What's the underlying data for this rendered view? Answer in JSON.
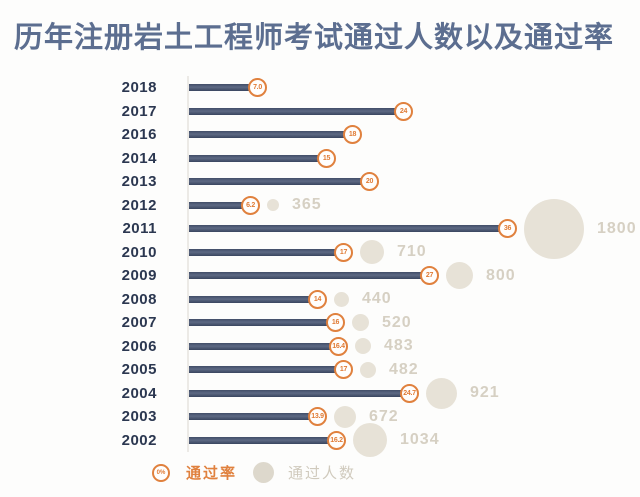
{
  "title": "历年注册岩土工程师考试通过人数以及通过率",
  "colors": {
    "title_text": "#5c6e90",
    "year_text": "#2b3750",
    "bar": "#4b5772",
    "accent_orange": "#e0813e",
    "bubble_fill": "#e7e2d7",
    "count_text": "#d6d0c3",
    "axis_line": "#eceae6"
  },
  "legend": {
    "rate_symbol": "0%",
    "rate_label": "通过率",
    "count_label": "通过人数"
  },
  "chart_data": {
    "type": "bar",
    "orientation": "horizontal",
    "title": "历年注册岩土工程师考试通过人数以及通过率",
    "xlabel": "",
    "ylabel": "",
    "xlim": [
      0,
      40
    ],
    "grid": false,
    "legend_position": "bottom",
    "categories": [
      "2018",
      "2017",
      "2016",
      "2014",
      "2013",
      "2012",
      "2011",
      "2010",
      "2009",
      "2008",
      "2007",
      "2006",
      "2005",
      "2004",
      "2003",
      "2002"
    ],
    "series": [
      {
        "name": "通过率",
        "unit": "%",
        "values": [
          7.0,
          24,
          18,
          15,
          20,
          6.2,
          36,
          17,
          27,
          14,
          16,
          16.4,
          17,
          24.7,
          13.9,
          16.2
        ]
      },
      {
        "name": "通过人数",
        "unit": "人",
        "values": [
          null,
          null,
          null,
          null,
          null,
          365,
          1800,
          710,
          800,
          440,
          520,
          483,
          482,
          921,
          672,
          1034
        ]
      }
    ],
    "rows": [
      {
        "year": "2018",
        "rate": 7.0,
        "rate_label": "7.0",
        "count": null
      },
      {
        "year": "2017",
        "rate": 24,
        "rate_label": "24",
        "count": null
      },
      {
        "year": "2016",
        "rate": 18,
        "rate_label": "18",
        "count": null
      },
      {
        "year": "2014",
        "rate": 15,
        "rate_label": "15",
        "count": null
      },
      {
        "year": "2013",
        "rate": 20,
        "rate_label": "20",
        "count": null
      },
      {
        "year": "2012",
        "rate": 6.2,
        "rate_label": "6.2",
        "count": 365
      },
      {
        "year": "2011",
        "rate": 36,
        "rate_label": "36",
        "count": 1800
      },
      {
        "year": "2010",
        "rate": 17,
        "rate_label": "17",
        "count": 710
      },
      {
        "year": "2009",
        "rate": 27,
        "rate_label": "27",
        "count": 800
      },
      {
        "year": "2008",
        "rate": 14,
        "rate_label": "14",
        "count": 440
      },
      {
        "year": "2007",
        "rate": 16,
        "rate_label": "16",
        "count": 520
      },
      {
        "year": "2006",
        "rate": 16.4,
        "rate_label": "16.4",
        "count": 483
      },
      {
        "year": "2005",
        "rate": 17,
        "rate_label": "17",
        "count": 482
      },
      {
        "year": "2004",
        "rate": 24.7,
        "rate_label": "24.7",
        "count": 921
      },
      {
        "year": "2003",
        "rate": 13.9,
        "rate_label": "13.9",
        "count": 672
      },
      {
        "year": "2002",
        "rate": 16.2,
        "rate_label": "16.2",
        "count": 1034
      }
    ]
  }
}
